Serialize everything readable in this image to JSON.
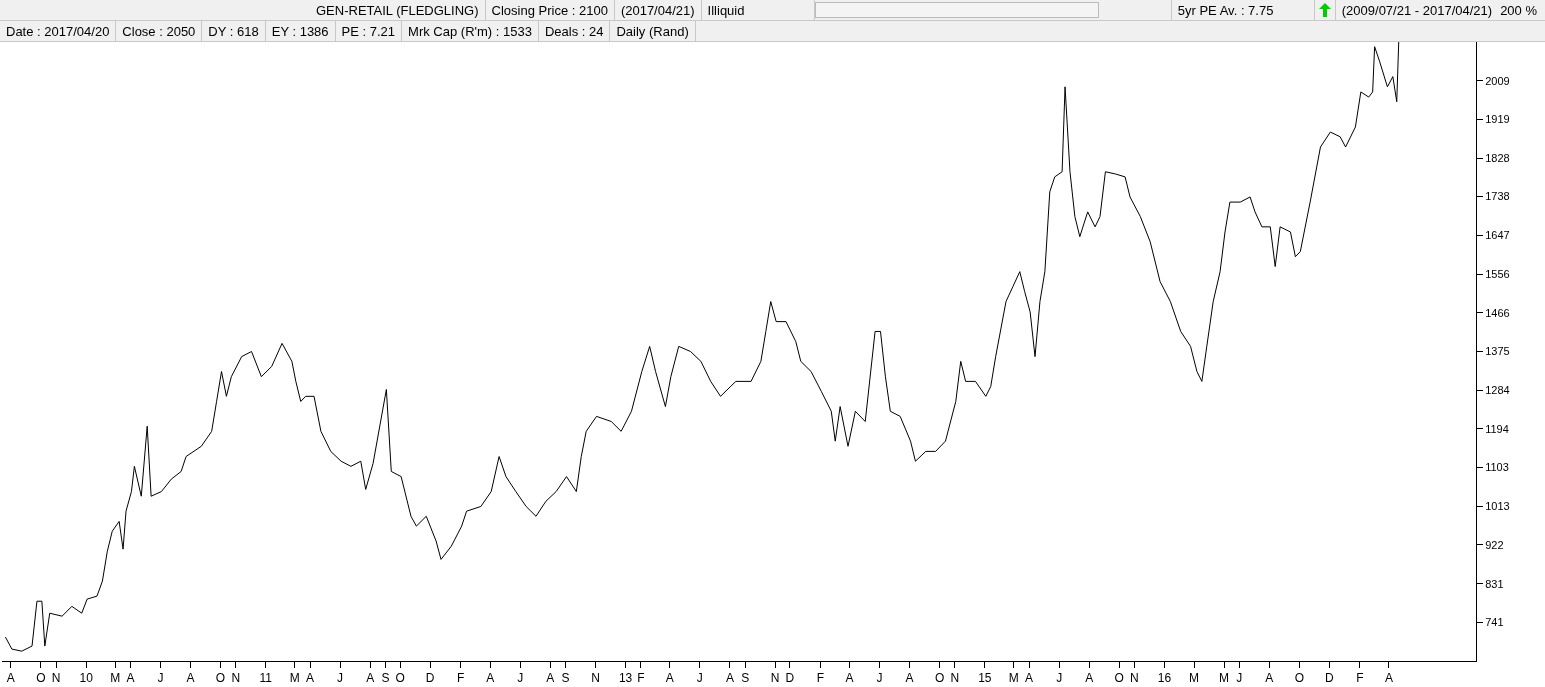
{
  "chart_data": {
    "type": "line",
    "annotations": [
      "GEN-RETAIL (FLEDGLING)",
      "Closing Price : 2100",
      "(2017/04/21)",
      "Illiquid",
      "5yr PE Av. : 7.75",
      "(2009/07/21 - 2017/04/21)",
      "200 %",
      "Date : 2017/04/20",
      "Close : 2050",
      "DY : 618",
      "EY : 1386",
      "PE : 7.21",
      "Mrk Cap (R'm) : 1533",
      "Deals : 24",
      "Daily (Rand)"
    ],
    "x": [
      "2009-07-21",
      "2009-08-03",
      "2009-08-23",
      "2009-09-13",
      "2009-09-23",
      "2009-10-03",
      "2009-10-09",
      "2009-10-19",
      "2009-11-13",
      "2009-12-03",
      "2009-12-23",
      "2010-01-03",
      "2010-01-23",
      "2010-02-03",
      "2010-02-13",
      "2010-02-23",
      "2010-03-09",
      "2010-03-17",
      "2010-03-23",
      "2010-04-03",
      "2010-04-09",
      "2010-04-23",
      "2010-05-05",
      "2010-05-13",
      "2010-06-03",
      "2010-06-23",
      "2010-07-13",
      "2010-07-23",
      "2010-08-23",
      "2010-09-13",
      "2010-09-23",
      "2010-10-03",
      "2010-10-13",
      "2010-10-23",
      "2010-11-13",
      "2010-12-03",
      "2010-12-23",
      "2011-01-13",
      "2011-02-03",
      "2011-02-23",
      "2011-03-03",
      "2011-03-13",
      "2011-03-23",
      "2011-04-09",
      "2011-04-23",
      "2011-05-13",
      "2011-06-03",
      "2011-06-23",
      "2011-07-13",
      "2011-07-23",
      "2011-08-07",
      "2011-09-03",
      "2011-09-13",
      "2011-10-03",
      "2011-10-23",
      "2011-11-03",
      "2011-11-23",
      "2011-12-13",
      "2011-12-23",
      "2012-01-13",
      "2012-02-03",
      "2012-02-13",
      "2012-03-13",
      "2012-04-03",
      "2012-04-19",
      "2012-05-03",
      "2012-05-23",
      "2012-06-13",
      "2012-07-03",
      "2012-07-23",
      "2012-08-13",
      "2012-09-03",
      "2012-09-23",
      "2012-10-03",
      "2012-10-13",
      "2012-11-03",
      "2012-12-03",
      "2012-12-23",
      "2013-01-13",
      "2013-02-03",
      "2013-02-19",
      "2013-03-03",
      "2013-03-23",
      "2013-04-03",
      "2013-04-19",
      "2013-05-13",
      "2013-06-03",
      "2013-06-23",
      "2013-07-13",
      "2013-08-13",
      "2013-09-13",
      "2013-10-03",
      "2013-10-13",
      "2013-10-23",
      "2013-11-03",
      "2013-11-23",
      "2013-12-13",
      "2013-12-23",
      "2014-01-13",
      "2014-02-03",
      "2014-02-23",
      "2014-03-03",
      "2014-03-13",
      "2014-03-29",
      "2014-04-13",
      "2014-05-03",
      "2014-05-23",
      "2014-06-03",
      "2014-06-13",
      "2014-06-23",
      "2014-07-13",
      "2014-08-03",
      "2014-08-13",
      "2014-09-03",
      "2014-09-23",
      "2014-10-13",
      "2014-11-03",
      "2014-11-13",
      "2014-11-23",
      "2014-12-13",
      "2015-01-03",
      "2015-01-13",
      "2015-01-23",
      "2015-02-13",
      "2015-02-27",
      "2015-03-13",
      "2015-03-23",
      "2015-04-03",
      "2015-04-13",
      "2015-04-23",
      "2015-05-03",
      "2015-05-13",
      "2015-05-23",
      "2015-06-07",
      "2015-06-13",
      "2015-06-23",
      "2015-07-03",
      "2015-07-13",
      "2015-07-29",
      "2015-08-13",
      "2015-08-23",
      "2015-09-03",
      "2015-09-23",
      "2015-10-13",
      "2015-10-23",
      "2015-11-13",
      "2015-12-03",
      "2015-12-23",
      "2016-01-13",
      "2016-02-03",
      "2016-02-23",
      "2016-03-07",
      "2016-03-17",
      "2016-03-27",
      "2016-04-09",
      "2016-04-23",
      "2016-05-03",
      "2016-05-13",
      "2016-06-03",
      "2016-06-23",
      "2016-07-03",
      "2016-07-17",
      "2016-08-03",
      "2016-08-13",
      "2016-08-23",
      "2016-09-13",
      "2016-09-23",
      "2016-10-03",
      "2016-10-23",
      "2016-11-13",
      "2016-12-03",
      "2016-12-23",
      "2017-01-03",
      "2017-01-23",
      "2017-02-03",
      "2017-02-19",
      "2017-02-27",
      "2017-03-03",
      "2017-03-13",
      "2017-03-29",
      "2017-04-09",
      "2017-04-17",
      "2017-04-21"
    ],
    "series": [
      {
        "color": "#000000",
        "values": [
          706,
          678,
          673,
          685,
          790,
          790,
          685,
          762,
          755,
          778,
          762,
          795,
          802,
          837,
          907,
          954,
          977,
          912,
          1001,
          1047,
          1106,
          1036,
          1200,
          1036,
          1047,
          1076,
          1094,
          1129,
          1153,
          1188,
          1258,
          1328,
          1270,
          1316,
          1363,
          1375,
          1316,
          1340,
          1394,
          1352,
          1305,
          1258,
          1270,
          1270,
          1188,
          1141,
          1118,
          1106,
          1118,
          1052,
          1113,
          1286,
          1094,
          1082,
          989,
          966,
          989,
          931,
          888,
          919,
          966,
          1001,
          1012,
          1047,
          1129,
          1082,
          1047,
          1012,
          989,
          1024,
          1047,
          1082,
          1047,
          1129,
          1188,
          1223,
          1211,
          1188,
          1235,
          1328,
          1387,
          1328,
          1246,
          1316,
          1387,
          1375,
          1352,
          1305,
          1270,
          1305,
          1305,
          1352,
          1422,
          1492,
          1445,
          1445,
          1398,
          1352,
          1328,
          1281,
          1235,
          1165,
          1246,
          1153,
          1235,
          1211,
          1422,
          1422,
          1316,
          1235,
          1223,
          1165,
          1118,
          1141,
          1141,
          1165,
          1258,
          1352,
          1305,
          1305,
          1270,
          1293,
          1363,
          1492,
          1527,
          1562,
          1515,
          1468,
          1363,
          1492,
          1562,
          1749,
          1784,
          1796,
          1995,
          1796,
          1691,
          1644,
          1702,
          1667,
          1691,
          1796,
          1791,
          1784,
          1737,
          1691,
          1632,
          1539,
          1492,
          1422,
          1387,
          1328,
          1305,
          1387,
          1492,
          1562,
          1655,
          1725,
          1725,
          1737,
          1702,
          1667,
          1667,
          1574,
          1667,
          1655,
          1597,
          1609,
          1725,
          1854,
          1889,
          1878,
          1854,
          1901,
          1983,
          1971,
          1983,
          2089,
          2055,
          1995,
          2019,
          1960,
          2100
        ]
      }
    ],
    "xlim": [
      "2009-07-14",
      "2017-09-25"
    ],
    "ylim": [
      650,
      2100
    ],
    "yticks": [
      741,
      831,
      922,
      1013,
      1103,
      1194,
      1284,
      1375,
      1466,
      1556,
      1647,
      1738,
      1828,
      1919,
      2009
    ],
    "xticks": [
      {
        "value": "2009-08-01",
        "label": "A"
      },
      {
        "value": "2009-10-01",
        "label": "O"
      },
      {
        "value": "2009-11-01",
        "label": "N"
      },
      {
        "value": "2010-01-01",
        "label": "10"
      },
      {
        "value": "2010-03-01",
        "label": "M"
      },
      {
        "value": "2010-04-01",
        "label": "A"
      },
      {
        "value": "2010-06-01",
        "label": "J"
      },
      {
        "value": "2010-08-01",
        "label": "A"
      },
      {
        "value": "2010-10-01",
        "label": "O"
      },
      {
        "value": "2010-11-01",
        "label": "N"
      },
      {
        "value": "2011-01-01",
        "label": "11"
      },
      {
        "value": "2011-03-01",
        "label": "M"
      },
      {
        "value": "2011-04-01",
        "label": "A"
      },
      {
        "value": "2011-06-01",
        "label": "J"
      },
      {
        "value": "2011-08-01",
        "label": "A"
      },
      {
        "value": "2011-09-01",
        "label": "S"
      },
      {
        "value": "2011-10-01",
        "label": "O"
      },
      {
        "value": "2011-12-01",
        "label": "D"
      },
      {
        "value": "2012-02-01",
        "label": "F"
      },
      {
        "value": "2012-04-01",
        "label": "A"
      },
      {
        "value": "2012-06-01",
        "label": "J"
      },
      {
        "value": "2012-08-01",
        "label": "A"
      },
      {
        "value": "2012-09-01",
        "label": "S"
      },
      {
        "value": "2012-11-01",
        "label": "N"
      },
      {
        "value": "2013-01-01",
        "label": "13"
      },
      {
        "value": "2013-02-01",
        "label": "F"
      },
      {
        "value": "2013-04-01",
        "label": "A"
      },
      {
        "value": "2013-06-01",
        "label": "J"
      },
      {
        "value": "2013-08-01",
        "label": "A"
      },
      {
        "value": "2013-09-01",
        "label": "S"
      },
      {
        "value": "2013-11-01",
        "label": "N"
      },
      {
        "value": "2013-12-01",
        "label": "D"
      },
      {
        "value": "2014-02-01",
        "label": "F"
      },
      {
        "value": "2014-04-01",
        "label": "A"
      },
      {
        "value": "2014-06-01",
        "label": "J"
      },
      {
        "value": "2014-08-01",
        "label": "A"
      },
      {
        "value": "2014-10-01",
        "label": "O"
      },
      {
        "value": "2014-11-01",
        "label": "N"
      },
      {
        "value": "2015-01-01",
        "label": "15"
      },
      {
        "value": "2015-03-01",
        "label": "M"
      },
      {
        "value": "2015-04-01",
        "label": "A"
      },
      {
        "value": "2015-06-01",
        "label": "J"
      },
      {
        "value": "2015-08-01",
        "label": "A"
      },
      {
        "value": "2015-10-01",
        "label": "O"
      },
      {
        "value": "2015-11-01",
        "label": "N"
      },
      {
        "value": "2016-01-01",
        "label": "16"
      },
      {
        "value": "2016-03-01",
        "label": "M"
      },
      {
        "value": "2016-05-01",
        "label": "M"
      },
      {
        "value": "2016-06-01",
        "label": "J"
      },
      {
        "value": "2016-08-01",
        "label": "A"
      },
      {
        "value": "2016-10-01",
        "label": "O"
      },
      {
        "value": "2016-12-01",
        "label": "D"
      },
      {
        "value": "2017-02-01",
        "label": "F"
      },
      {
        "value": "2017-04-01",
        "label": "A"
      }
    ]
  }
}
